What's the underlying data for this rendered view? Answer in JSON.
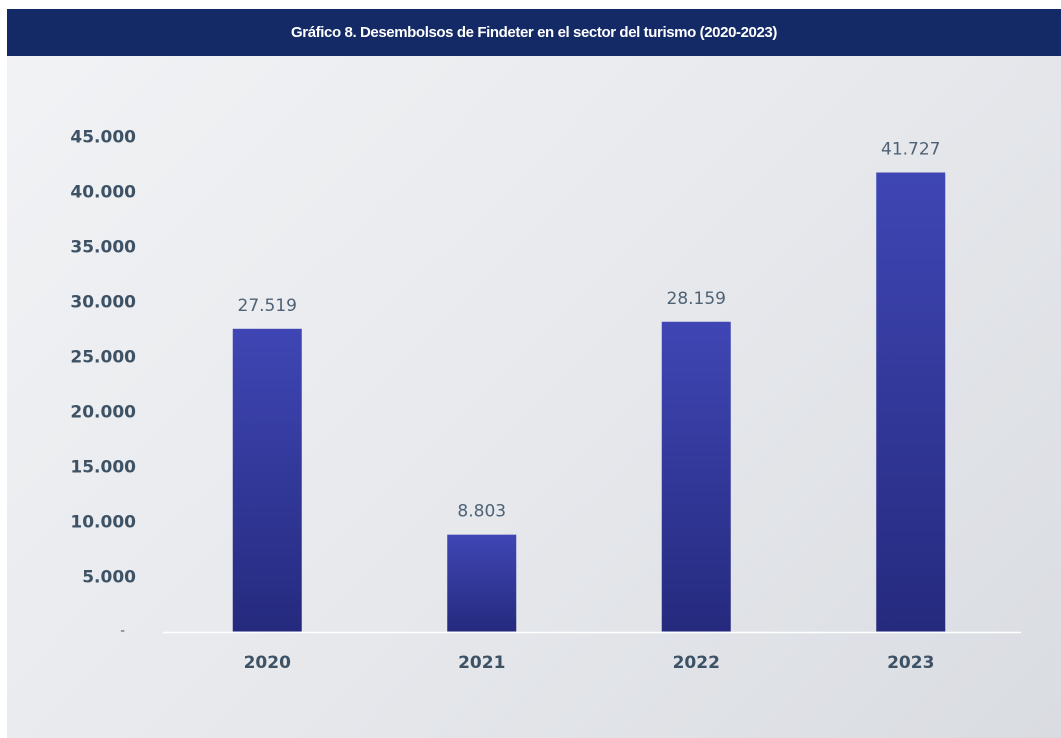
{
  "chart_data": {
    "type": "bar",
    "title": "Gráfico 8. Desembolsos de Findeter en el sector del turismo (2020-2023)",
    "categories": [
      "2020",
      "2021",
      "2022",
      "2023"
    ],
    "values": [
      27519,
      8803,
      28159,
      41727
    ],
    "data_labels": [
      "27.519",
      "8.803",
      "28.159",
      "41.727"
    ],
    "ylim": [
      0,
      45000
    ],
    "y_ticks": [
      0,
      5000,
      10000,
      15000,
      20000,
      25000,
      30000,
      35000,
      40000,
      45000
    ],
    "y_tick_labels": [
      "-",
      "5.000",
      "10.000",
      "15.000",
      "20.000",
      "25.000",
      "30.000",
      "35.000",
      "40.000",
      "45.000"
    ],
    "xlabel": "",
    "ylabel": "",
    "grid": false,
    "legend": "none",
    "colors": {
      "bar_top": "#3f46b4",
      "bar_bottom": "#252a7e",
      "title_bar": "#142a66",
      "title_text": "#ffffff",
      "axis_text": "#3e5266",
      "baseline": "#ffffff"
    }
  }
}
